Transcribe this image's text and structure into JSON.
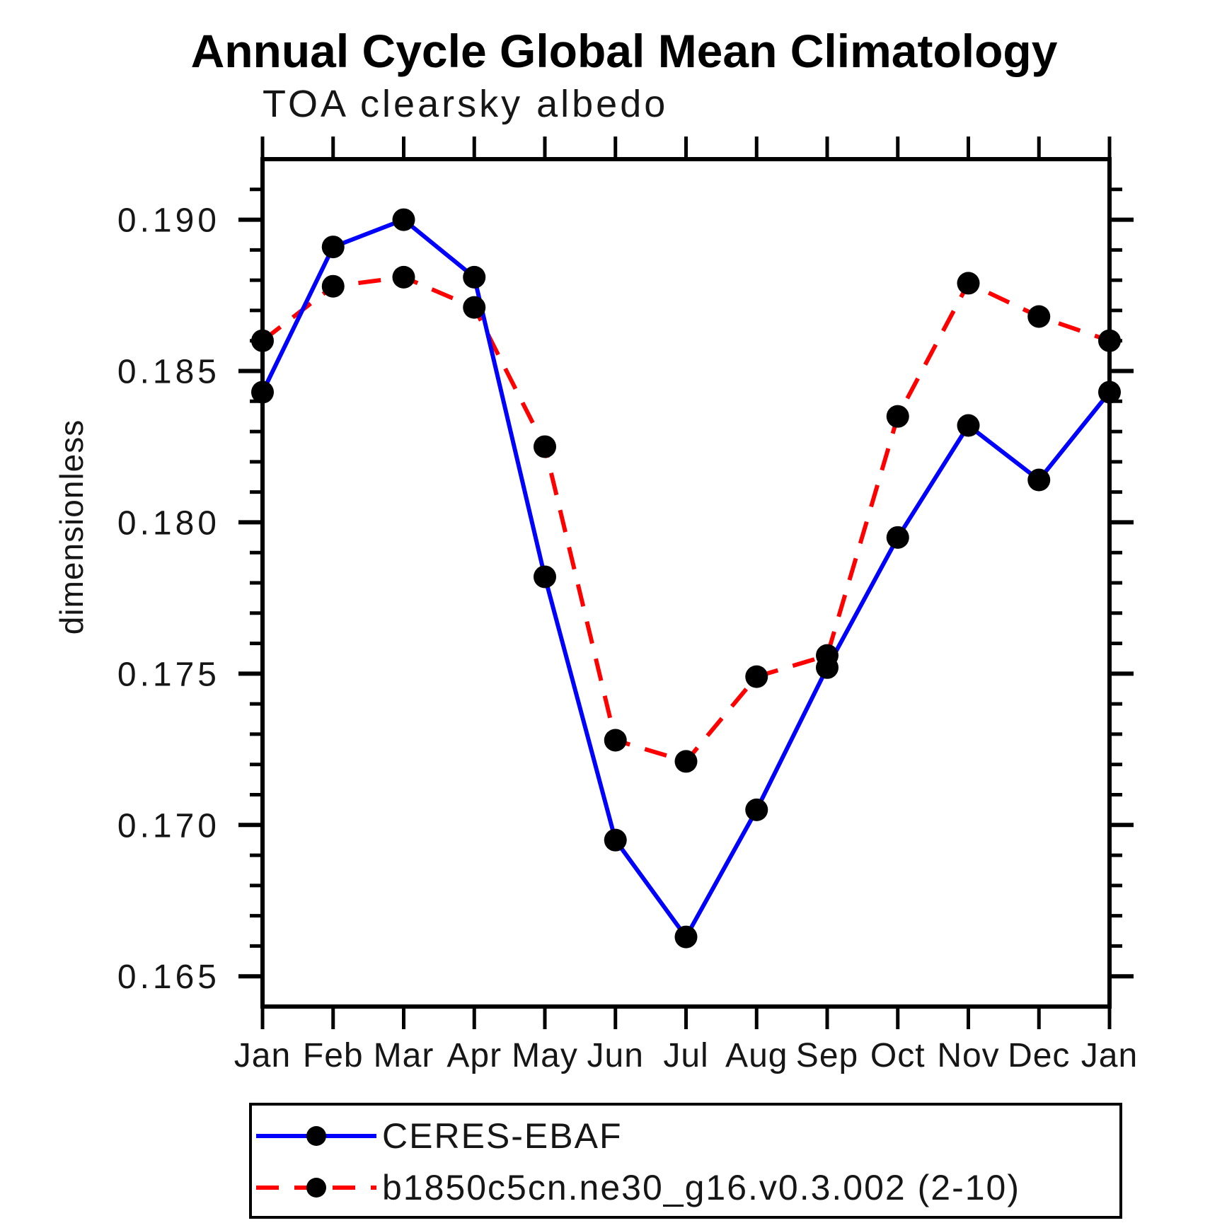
{
  "title": "Annual Cycle Global Mean Climatology",
  "subtitle": "TOA clearsky albedo",
  "chart_data": {
    "type": "line",
    "x_categories": [
      "Jan",
      "Feb",
      "Mar",
      "Apr",
      "May",
      "Jun",
      "Jul",
      "Aug",
      "Sep",
      "Oct",
      "Nov",
      "Dec",
      "Jan"
    ],
    "ylabel": "dimensionless",
    "ylim": [
      0.164,
      0.192
    ],
    "ytick_labels": [
      "0.165",
      "0.170",
      "0.175",
      "0.180",
      "0.185",
      "0.190"
    ],
    "ytick_minor_step": 0.001,
    "grid": false,
    "legend_position": "bottom",
    "marker_color": "#000000",
    "axis_color": "#000000",
    "series": [
      {
        "name": "CERES-EBAF",
        "color": "#0000ff",
        "style": "solid",
        "marker": "circle",
        "values": [
          0.1843,
          0.1891,
          0.19,
          0.1881,
          0.1782,
          0.1695,
          0.1663,
          0.1705,
          0.1752,
          0.1795,
          0.1832,
          0.1814,
          0.1843
        ]
      },
      {
        "name": "b1850c5cn.ne30_g16.v0.3.002 (2-10)",
        "color": "#ff0000",
        "style": "dashed",
        "marker": "circle",
        "values": [
          0.186,
          0.1878,
          0.1881,
          0.1871,
          0.1825,
          0.1728,
          0.1721,
          0.1749,
          0.1756,
          0.1835,
          0.1879,
          0.1868,
          0.186
        ]
      }
    ]
  }
}
